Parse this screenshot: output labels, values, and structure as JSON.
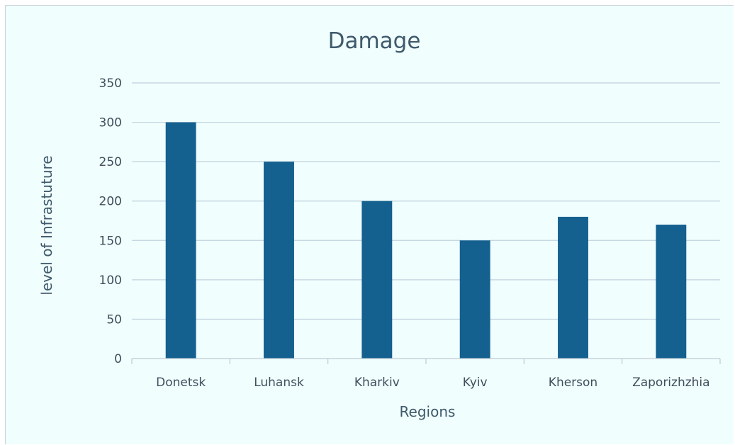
{
  "colors": {
    "background": "#f1fefe",
    "bar": "#14608f",
    "gridline": "#bfd2dd",
    "axis": "#bfcbd3",
    "text": "#3f5a6c"
  },
  "chart_data": {
    "type": "bar",
    "title": "Damage",
    "xlabel": "Regions",
    "ylabel": "level of Infrastuture",
    "categories": [
      "Donetsk",
      "Luhansk",
      "Kharkiv",
      "Kyiv",
      "Kherson",
      "Zaporizhzhia"
    ],
    "values": [
      300,
      250,
      200,
      150,
      180,
      170
    ],
    "ylim": [
      0,
      350
    ],
    "yticks": [
      0,
      50,
      100,
      150,
      200,
      250,
      300,
      350
    ],
    "grid": true,
    "legend": "none"
  }
}
